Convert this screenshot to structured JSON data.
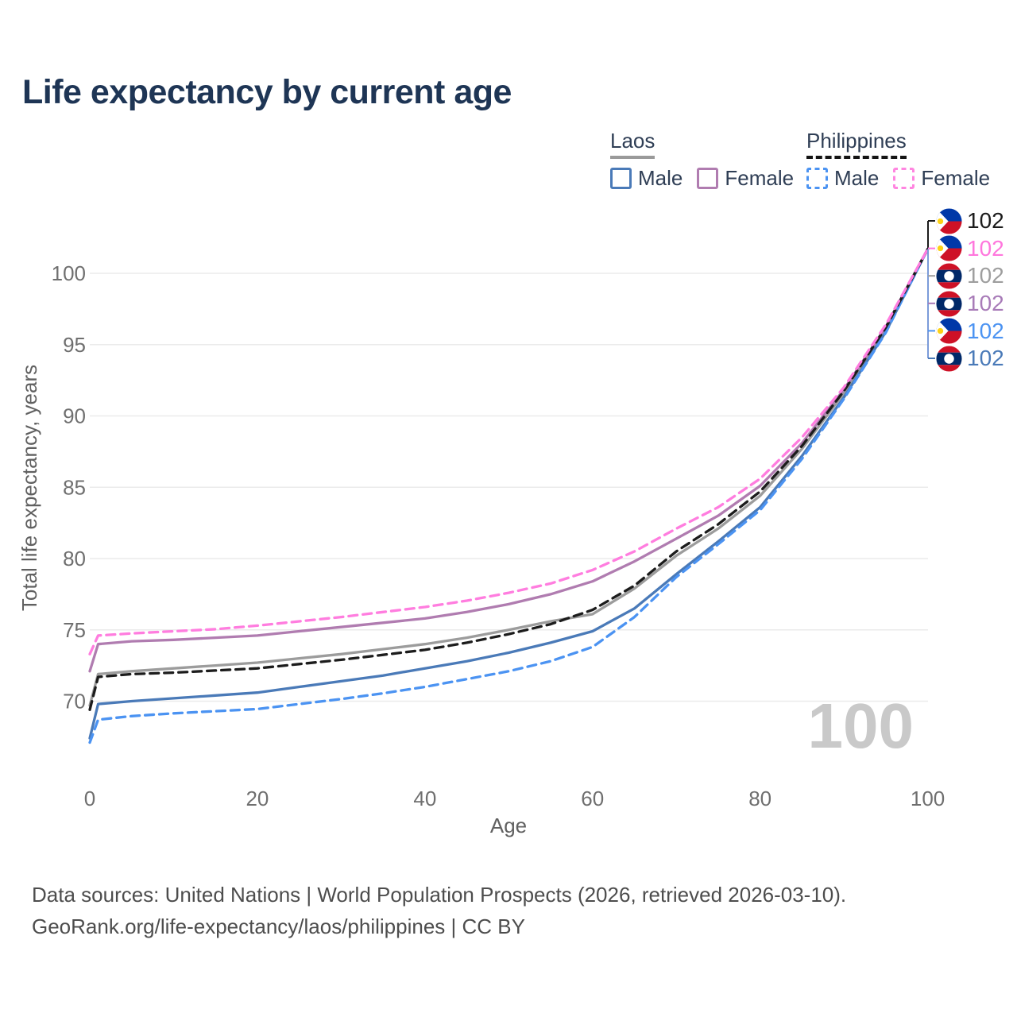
{
  "title": "Life expectancy by current age",
  "legend": {
    "groups": [
      {
        "id": "laos",
        "label": "Laos",
        "line_style": "solid",
        "underline_color": "#9a9a9a",
        "items": [
          {
            "label": "Male",
            "color": "#4a7ab8"
          },
          {
            "label": "Female",
            "color": "#b07cb0"
          }
        ]
      },
      {
        "id": "philippines",
        "label": "Philippines",
        "line_style": "dashed",
        "underline_color": "#141414",
        "items": [
          {
            "label": "Male",
            "color": "#4b93f2"
          },
          {
            "label": "Female",
            "color": "#ff85e0"
          }
        ]
      }
    ]
  },
  "chart_data": {
    "type": "line",
    "title": "Life expectancy by current age",
    "xlabel": "Age",
    "ylabel": "Total life expectancy, years",
    "xlim": [
      0,
      100
    ],
    "ylim": [
      70,
      102
    ],
    "xticks": [
      0,
      20,
      40,
      60,
      80,
      100
    ],
    "yticks": [
      70,
      75,
      80,
      85,
      90,
      95,
      100
    ],
    "grid": "horizontal",
    "watermark": "100",
    "x": [
      0,
      1,
      5,
      10,
      15,
      20,
      25,
      30,
      35,
      40,
      45,
      50,
      55,
      60,
      65,
      70,
      75,
      80,
      85,
      90,
      95,
      100
    ],
    "series": [
      {
        "name": "Laos (total)",
        "country": "laos",
        "sex": "total",
        "color": "#9c9c9c",
        "dash": false,
        "values": [
          69.7,
          71.9,
          72.1,
          72.3,
          72.5,
          72.7,
          73.0,
          73.3,
          73.65,
          74.0,
          74.45,
          75.0,
          75.6,
          76.1,
          77.9,
          80.2,
          82.1,
          84.4,
          87.7,
          91.6,
          96.1,
          101.7
        ]
      },
      {
        "name": "Laos Male",
        "country": "laos",
        "sex": "male",
        "color": "#4a7ab8",
        "dash": false,
        "values": [
          67.4,
          69.8,
          70.0,
          70.2,
          70.4,
          70.6,
          71.0,
          71.4,
          71.8,
          72.3,
          72.8,
          73.4,
          74.1,
          74.9,
          76.5,
          78.9,
          81.2,
          83.6,
          87.2,
          91.3,
          95.9,
          101.7
        ]
      },
      {
        "name": "Laos Female",
        "country": "laos",
        "sex": "female",
        "color": "#b07cb0",
        "dash": false,
        "values": [
          72.1,
          74.0,
          74.2,
          74.3,
          74.45,
          74.6,
          74.9,
          75.2,
          75.5,
          75.8,
          76.25,
          76.8,
          77.5,
          78.4,
          79.8,
          81.4,
          83.0,
          85.1,
          88.1,
          91.85,
          96.25,
          101.7
        ]
      },
      {
        "name": "Philippines Male",
        "country": "philippines",
        "sex": "male",
        "color": "#4b93f2",
        "dash": true,
        "values": [
          67.1,
          68.7,
          68.95,
          69.15,
          69.3,
          69.45,
          69.8,
          70.15,
          70.55,
          71.0,
          71.55,
          72.1,
          72.8,
          73.8,
          75.9,
          78.7,
          81.0,
          83.4,
          87.0,
          91.2,
          95.85,
          101.7
        ]
      },
      {
        "name": "Philippines (total)",
        "country": "philippines",
        "sex": "total",
        "color": "#1c1c1c",
        "dash": true,
        "values": [
          69.4,
          71.7,
          71.9,
          72.0,
          72.15,
          72.3,
          72.6,
          72.9,
          73.25,
          73.6,
          74.1,
          74.7,
          75.4,
          76.4,
          78.1,
          80.5,
          82.4,
          84.7,
          87.9,
          91.75,
          96.2,
          101.7
        ]
      },
      {
        "name": "Philippines Female",
        "country": "philippines",
        "sex": "female",
        "color": "#ff7ddf",
        "dash": true,
        "values": [
          73.3,
          74.6,
          74.75,
          74.9,
          75.05,
          75.3,
          75.6,
          75.9,
          76.25,
          76.6,
          77.05,
          77.6,
          78.25,
          79.2,
          80.5,
          82.1,
          83.6,
          85.6,
          88.5,
          92.0,
          96.4,
          101.7
        ]
      }
    ]
  },
  "end_labels": [
    {
      "series": "Philippines (total)",
      "flag": "philippines",
      "value": "102",
      "color": "#1c1c1c"
    },
    {
      "series": "Philippines Female",
      "flag": "philippines",
      "value": "102",
      "color": "#ff77dd"
    },
    {
      "series": "Laos (total)",
      "flag": "laos",
      "value": "102",
      "color": "#9e9e9e"
    },
    {
      "series": "Laos Female",
      "flag": "laos",
      "value": "102",
      "color": "#a87bb8"
    },
    {
      "series": "Philippines Male",
      "flag": "philippines",
      "value": "102",
      "color": "#4b93f2"
    },
    {
      "series": "Laos Male",
      "flag": "laos",
      "value": "102",
      "color": "#4a7ab8"
    }
  ],
  "footer": {
    "line1": "Data sources: United Nations | World Population Prospects (2026, retrieved 2026-03-10).",
    "line2": "GeoRank.org/life-expectancy/laos/philippines | CC BY"
  }
}
